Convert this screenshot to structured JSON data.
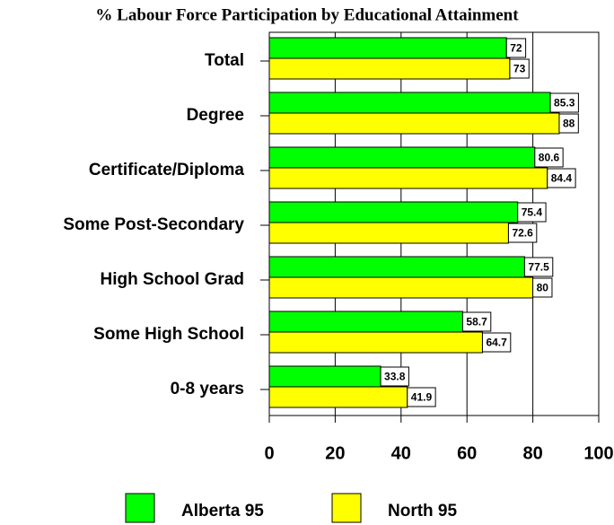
{
  "chart_data": {
    "type": "bar",
    "orientation": "horizontal",
    "title": "% Labour Force Participation by Educational Attainment",
    "categories": [
      "Total",
      "Degree",
      "Certificate/Diploma",
      "Some Post-Secondary",
      "High School Grad",
      "Some High School",
      "0-8 years"
    ],
    "series": [
      {
        "name": "Alberta 95",
        "color": "#00ff00",
        "values": [
          72,
          85.3,
          80.6,
          75.4,
          77.5,
          58.7,
          33.8
        ]
      },
      {
        "name": "North 95",
        "color": "#ffff00",
        "values": [
          73,
          88,
          84.4,
          72.6,
          80,
          64.7,
          41.9
        ]
      }
    ],
    "xlim": [
      0,
      100
    ],
    "xticks": [
      0,
      20,
      40,
      60,
      80,
      100
    ],
    "grid": true,
    "legend": "bottom"
  }
}
